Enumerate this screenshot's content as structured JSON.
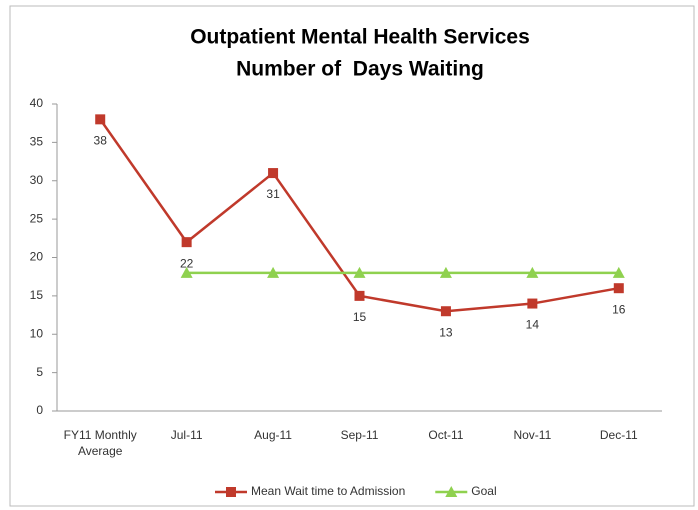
{
  "chart_data": {
    "type": "line",
    "title": [
      "Outpatient Mental Health Services",
      "Number of  Days Waiting"
    ],
    "categories": [
      "FY11 Monthly Average",
      "Jul-11",
      "Aug-11",
      "Sep-11",
      "Oct-11",
      "Nov-11",
      "Dec-11"
    ],
    "series": [
      {
        "name": "Mean Wait time to Admission",
        "color": "#c0392b",
        "marker": "square",
        "values": [
          38,
          22,
          31,
          15,
          13,
          14,
          16
        ],
        "data_labels": true
      },
      {
        "name": "Goal",
        "color": "#8fd14f",
        "marker": "triangle",
        "values": [
          null,
          18,
          18,
          18,
          18,
          18,
          18
        ],
        "data_labels": false
      }
    ],
    "ylim": [
      0,
      40
    ],
    "yticks": [
      0,
      5,
      10,
      15,
      20,
      25,
      30,
      35,
      40
    ],
    "grid": false,
    "legend": "bottom"
  }
}
